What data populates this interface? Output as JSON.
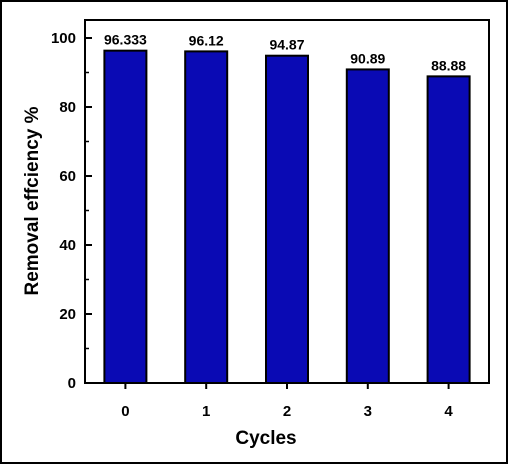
{
  "chart_data": {
    "type": "bar",
    "categories": [
      "0",
      "1",
      "2",
      "3",
      "4"
    ],
    "values": [
      96.333,
      96.12,
      94.87,
      90.89,
      88.88
    ],
    "data_labels": [
      "96.333",
      "96.12",
      "94.87",
      "90.89",
      "88.88"
    ],
    "xlabel": "Cycles",
    "ylabel": "Removal effciency %",
    "ylim": [
      0,
      100
    ],
    "yticks": [
      0,
      20,
      40,
      60,
      80,
      100
    ],
    "ytick_labels": [
      "0",
      "20",
      "40",
      "60",
      "80",
      "100"
    ],
    "grid": false,
    "bar_color": "#0a0ab4",
    "bar_edge_color": "#000000"
  }
}
